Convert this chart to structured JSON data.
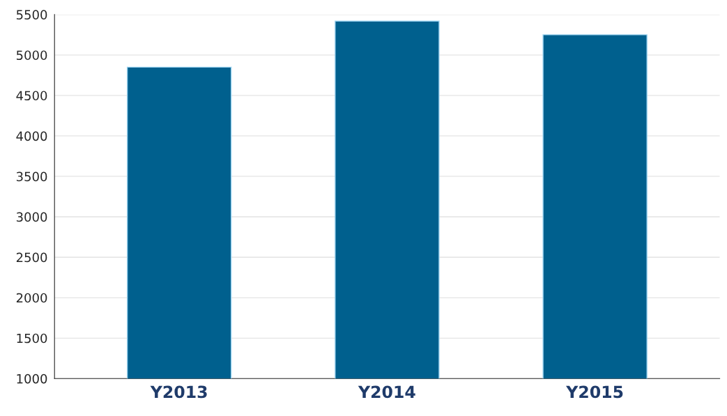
{
  "chart_data": {
    "type": "bar",
    "categories": [
      "Y2013",
      "Y2014",
      "Y2015"
    ],
    "values": [
      4850,
      5420,
      5250
    ],
    "color": "#00608e",
    "ylim": [
      1000,
      5500
    ],
    "yticks": [
      1000,
      1500,
      2000,
      2500,
      3000,
      3500,
      4000,
      4500,
      5000,
      5500
    ],
    "grid": "y"
  }
}
